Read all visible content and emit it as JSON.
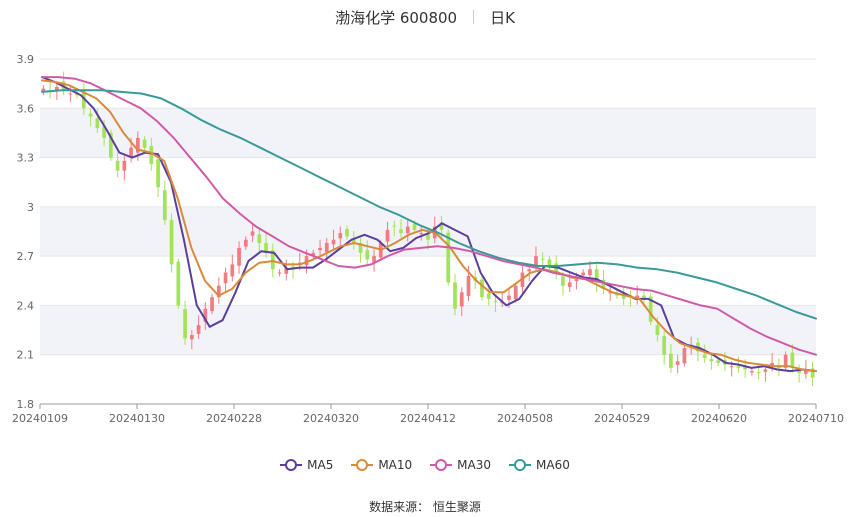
{
  "header": {
    "title": "渤海化学 600800",
    "period": "日K"
  },
  "legend": [
    {
      "label": "MA5",
      "color": "#5b3f9c"
    },
    {
      "label": "MA10",
      "color": "#d98a3a"
    },
    {
      "label": "MA30",
      "color": "#d15aa8"
    },
    {
      "label": "MA60",
      "color": "#3a9a9a"
    }
  ],
  "source": "数据来源： 恒生聚源",
  "colors": {
    "up": "#f07c82",
    "down": "#a3e35a",
    "band": "#f2f3f9",
    "grid": "#e6e6e6"
  },
  "chart_data": {
    "type": "candlestick",
    "ylim": [
      1.8,
      3.9
    ],
    "y_ticks": [
      "1.8",
      "2.1",
      "2.4",
      "2.7",
      "3",
      "3.3",
      "3.6",
      "3.9"
    ],
    "x_ticks": [
      "20240109",
      "20240130",
      "20240228",
      "20240320",
      "20240412",
      "20240508",
      "20240529",
      "20240620",
      "20240710"
    ],
    "close": [
      3.72,
      3.7,
      3.73,
      3.71,
      3.69,
      3.68,
      3.6,
      3.55,
      3.48,
      3.42,
      3.3,
      3.22,
      3.28,
      3.36,
      3.42,
      3.36,
      3.26,
      3.12,
      2.92,
      2.65,
      2.4,
      2.2,
      2.22,
      2.28,
      2.38,
      2.45,
      2.52,
      2.6,
      2.65,
      2.75,
      2.8,
      2.85,
      2.78,
      2.72,
      2.62,
      2.6,
      2.63,
      2.62,
      2.66,
      2.7,
      2.72,
      2.75,
      2.78,
      2.8,
      2.84,
      2.82,
      2.78,
      2.72,
      2.68,
      2.7,
      2.78,
      2.86,
      2.88,
      2.84,
      2.88,
      2.86,
      2.84,
      2.8,
      2.88,
      2.86,
      2.54,
      2.38,
      2.48,
      2.58,
      2.55,
      2.45,
      2.44,
      2.42,
      2.42,
      2.46,
      2.52,
      2.6,
      2.62,
      2.7,
      2.68,
      2.64,
      2.6,
      2.52,
      2.54,
      2.56,
      2.6,
      2.62,
      2.54,
      2.5,
      2.48,
      2.46,
      2.44,
      2.45,
      2.46,
      2.44,
      2.3,
      2.22,
      2.1,
      2.02,
      2.06,
      2.14,
      2.16,
      2.12,
      2.08,
      2.06,
      2.05,
      2.04,
      2.03,
      2.02,
      2.01,
      2.0,
      1.99,
      2.01,
      2.05,
      2.02,
      2.1,
      2.03,
      1.99,
      2.01,
      1.96
    ],
    "ma": {
      "MA5": [
        3.79,
        3.76,
        3.72,
        3.68,
        3.6,
        3.47,
        3.33,
        3.3,
        3.33,
        3.32,
        3.15,
        2.8,
        2.4,
        2.27,
        2.31,
        2.48,
        2.67,
        2.73,
        2.72,
        2.62,
        2.63,
        2.63,
        2.68,
        2.74,
        2.8,
        2.83,
        2.8,
        2.73,
        2.75,
        2.81,
        2.84,
        2.9,
        2.86,
        2.82,
        2.6,
        2.47,
        2.4,
        2.44,
        2.55,
        2.64,
        2.63,
        2.6,
        2.57,
        2.56,
        2.52,
        2.48,
        2.44,
        2.44,
        2.4,
        2.2,
        2.16,
        2.14,
        2.1,
        2.05,
        2.04,
        2.02,
        2.03,
        2.01,
        2.0,
        2.01,
        2.0
      ],
      "MA10": [
        3.77,
        3.76,
        3.74,
        3.7,
        3.66,
        3.58,
        3.45,
        3.35,
        3.33,
        3.28,
        3.05,
        2.75,
        2.55,
        2.46,
        2.5,
        2.6,
        2.66,
        2.67,
        2.65,
        2.65,
        2.68,
        2.72,
        2.76,
        2.78,
        2.76,
        2.74,
        2.78,
        2.83,
        2.86,
        2.84,
        2.76,
        2.64,
        2.55,
        2.48,
        2.48,
        2.54,
        2.6,
        2.62,
        2.6,
        2.57,
        2.56,
        2.52,
        2.48,
        2.46,
        2.44,
        2.33,
        2.24,
        2.17,
        2.14,
        2.11,
        2.1,
        2.07,
        2.05,
        2.04,
        2.03,
        2.03,
        2.01,
        2.0
      ],
      "MA30": [
        3.79,
        3.79,
        3.78,
        3.75,
        3.7,
        3.65,
        3.6,
        3.52,
        3.42,
        3.3,
        3.18,
        3.05,
        2.96,
        2.88,
        2.82,
        2.76,
        2.72,
        2.68,
        2.64,
        2.63,
        2.65,
        2.7,
        2.74,
        2.75,
        2.76,
        2.75,
        2.73,
        2.7,
        2.67,
        2.65,
        2.63,
        2.6,
        2.58,
        2.56,
        2.54,
        2.52,
        2.5,
        2.49,
        2.46,
        2.43,
        2.4,
        2.38,
        2.32,
        2.26,
        2.21,
        2.17,
        2.13,
        2.1
      ],
      "MA60": [
        3.7,
        3.71,
        3.71,
        3.71,
        3.7,
        3.69,
        3.66,
        3.6,
        3.53,
        3.47,
        3.42,
        3.36,
        3.3,
        3.24,
        3.18,
        3.12,
        3.06,
        3.0,
        2.95,
        2.89,
        2.84,
        2.78,
        2.73,
        2.69,
        2.66,
        2.64,
        2.64,
        2.65,
        2.66,
        2.65,
        2.63,
        2.62,
        2.6,
        2.57,
        2.54,
        2.5,
        2.46,
        2.41,
        2.36,
        2.32
      ]
    }
  }
}
